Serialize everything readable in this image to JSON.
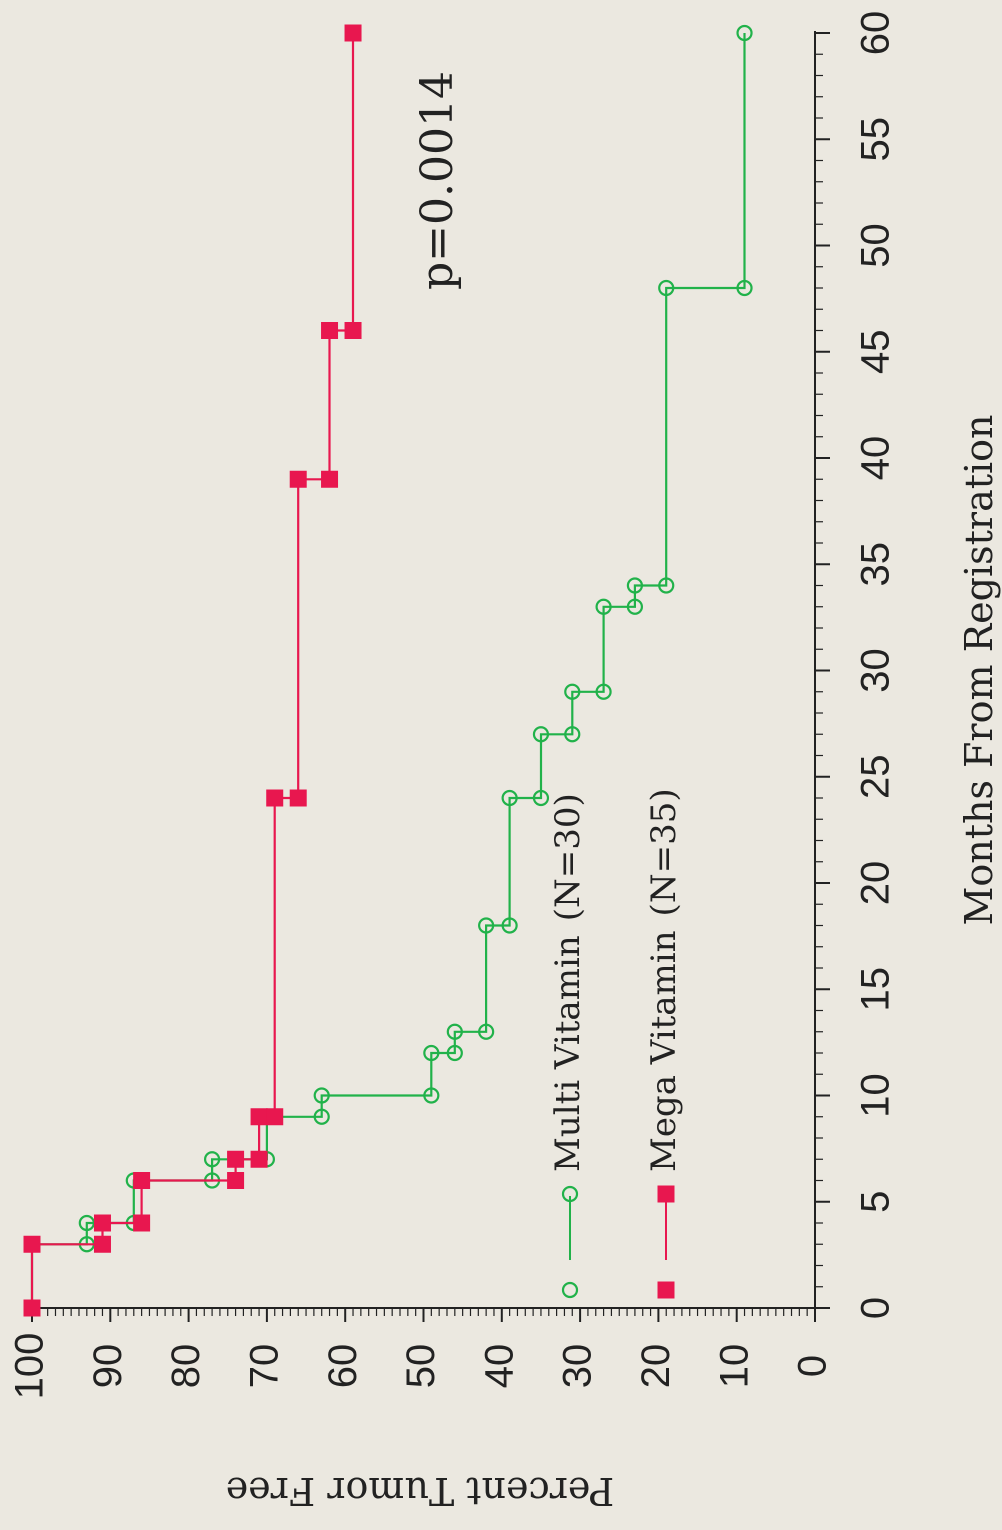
{
  "chart_data": {
    "type": "line",
    "step": true,
    "orientation": "rotated-90-clockwise",
    "xlabel": "Months From Registration",
    "ylabel": "Percent Tumor Free",
    "xlim": [
      0,
      60
    ],
    "ylim": [
      0,
      100
    ],
    "xticks": [
      0,
      5,
      10,
      15,
      20,
      25,
      30,
      35,
      40,
      45,
      50,
      55,
      60
    ],
    "yticks": [
      0,
      10,
      20,
      30,
      40,
      50,
      60,
      70,
      80,
      90,
      100
    ],
    "grid": false,
    "legend_position": "bottom-left",
    "annotation": "p=0.0014",
    "series": [
      {
        "name": "Multi Vitamin",
        "n_label": "(N=30)",
        "color": "#21b24a",
        "marker": "open-circle",
        "x": [
          0,
          3,
          3,
          4,
          4,
          6,
          6,
          7,
          7,
          9,
          9,
          10,
          10,
          12,
          12,
          13,
          13,
          18,
          18,
          24,
          24,
          27,
          27,
          29,
          29,
          33,
          33,
          34,
          34,
          48,
          48,
          60
        ],
        "y": [
          100,
          100,
          93,
          93,
          87,
          87,
          77,
          77,
          70,
          70,
          63,
          63,
          49,
          49,
          46,
          46,
          42,
          42,
          39,
          39,
          35,
          35,
          31,
          31,
          27,
          27,
          23,
          23,
          19,
          19,
          9,
          9
        ]
      },
      {
        "name": "Mega Vitamin",
        "n_label": "(N=35)",
        "color": "#e8174f",
        "marker": "filled-square",
        "x": [
          0,
          3,
          3,
          4,
          4,
          6,
          6,
          7,
          7,
          9,
          9,
          24,
          24,
          39,
          39,
          46,
          46,
          60
        ],
        "y": [
          100,
          100,
          91,
          91,
          86,
          86,
          74,
          74,
          71,
          71,
          69,
          69,
          66,
          66,
          62,
          62,
          59,
          59
        ]
      }
    ]
  }
}
